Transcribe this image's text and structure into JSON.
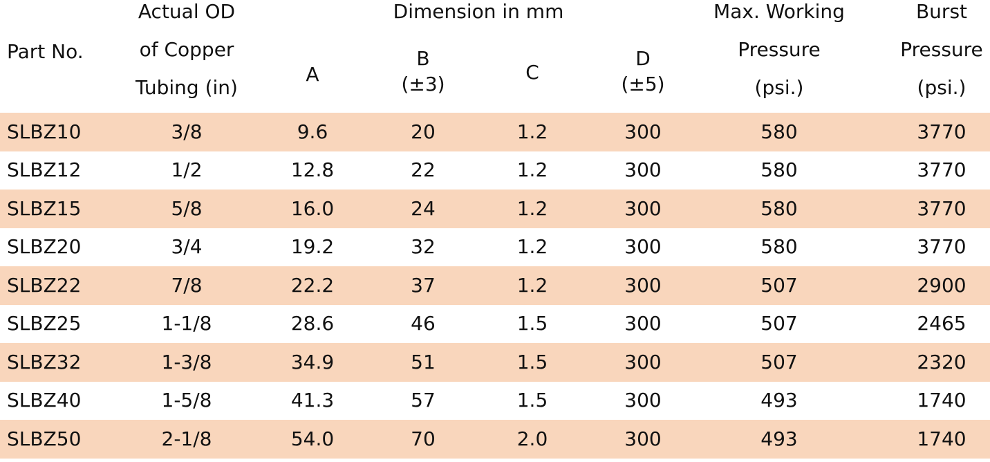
{
  "header": {
    "part_no": "Part No.",
    "actual_od": [
      "Actual OD",
      "of Copper",
      "Tubing (in)"
    ],
    "dimension": "Dimension in mm",
    "a": "A",
    "b": [
      "B",
      "(±3)"
    ],
    "c": "C",
    "d": [
      "D",
      "(±5)"
    ],
    "max_working": [
      "Max. Working",
      "Pressure",
      "(psi.)"
    ],
    "burst": [
      "Burst",
      "Pressure",
      "(psi.)"
    ]
  },
  "table": {
    "rows": [
      [
        "SLBZ10",
        "3/8",
        "9.6",
        "20",
        "1.2",
        "300",
        "580",
        "3770"
      ],
      [
        "SLBZ12",
        "1/2",
        "12.8",
        "22",
        "1.2",
        "300",
        "580",
        "3770"
      ],
      [
        "SLBZ15",
        "5/8",
        "16.0",
        "24",
        "1.2",
        "300",
        "580",
        "3770"
      ],
      [
        "SLBZ20",
        "3/4",
        "19.2",
        "32",
        "1.2",
        "300",
        "580",
        "3770"
      ],
      [
        "SLBZ22",
        "7/8",
        "22.2",
        "37",
        "1.2",
        "300",
        "507",
        "2900"
      ],
      [
        "SLBZ25",
        "1-1/8",
        "28.6",
        "46",
        "1.5",
        "300",
        "507",
        "2465"
      ],
      [
        "SLBZ32",
        "1-3/8",
        "34.9",
        "51",
        "1.5",
        "300",
        "507",
        "2320"
      ],
      [
        "SLBZ40",
        "1-5/8",
        "41.3",
        "57",
        "1.5",
        "300",
        "493",
        "1740"
      ],
      [
        "SLBZ50",
        "2-1/8",
        "54.0",
        "70",
        "2.0",
        "300",
        "493",
        "1740"
      ]
    ]
  }
}
